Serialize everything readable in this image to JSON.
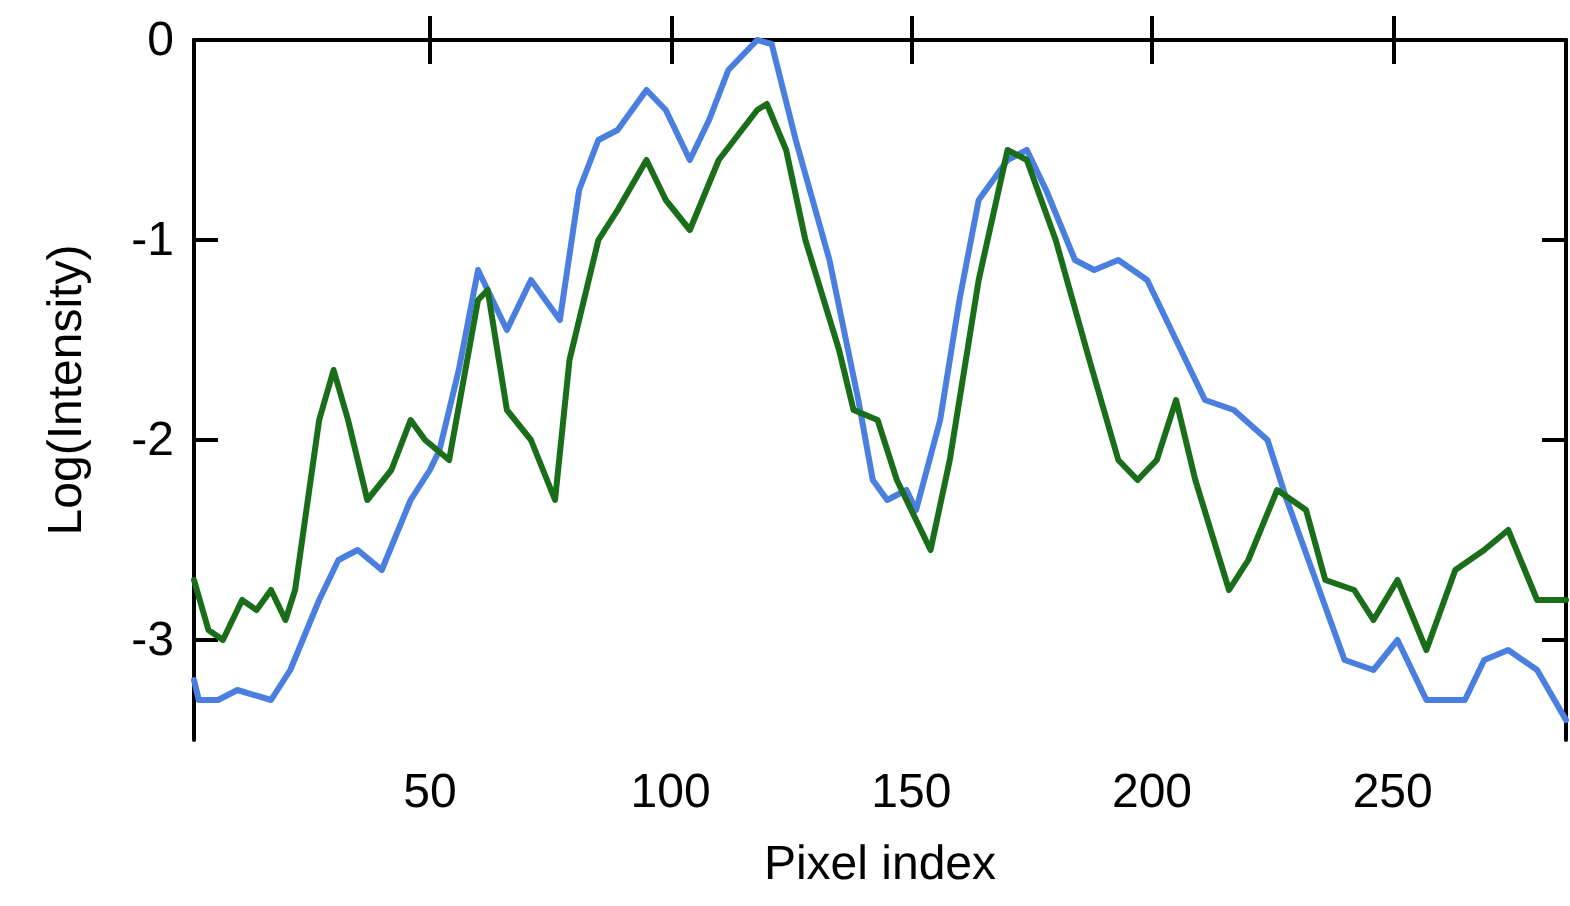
{
  "chart_data": {
    "type": "line",
    "xlabel": "Pixel index",
    "ylabel": "Log(Intensity)",
    "xlim": [
      1,
      286
    ],
    "ylim": [
      -3.5,
      0
    ],
    "xticks": [
      50,
      100,
      150,
      200,
      250
    ],
    "yticks": [
      0,
      -1,
      -2,
      -3
    ],
    "grid": false,
    "marker": "none",
    "line_style": "solid",
    "series": [
      {
        "color": "#4a7fe0",
        "x": [
          1,
          2,
          6,
          10,
          17,
          21,
          27,
          31,
          35,
          40,
          46,
          50,
          52,
          56,
          60,
          62,
          66,
          71,
          77,
          81,
          85,
          89,
          95,
          99,
          104,
          108,
          112,
          118,
          121,
          126,
          133,
          139,
          142,
          145,
          149,
          151,
          156,
          160,
          164,
          170,
          174,
          178,
          184,
          188,
          193,
          199,
          205,
          211,
          217,
          224,
          228,
          234,
          240,
          246,
          251,
          257,
          265,
          269,
          274,
          280,
          286
        ],
        "values": [
          -3.2,
          -3.3,
          -3.3,
          -3.25,
          -3.3,
          -3.15,
          -2.8,
          -2.6,
          -2.55,
          -2.65,
          -2.3,
          -2.15,
          -2.05,
          -1.65,
          -1.15,
          -1.25,
          -1.45,
          -1.2,
          -1.4,
          -0.75,
          -0.5,
          -0.45,
          -0.25,
          -0.35,
          -0.6,
          -0.4,
          -0.15,
          0,
          -0.02,
          -0.5,
          -1.1,
          -1.8,
          -2.2,
          -2.3,
          -2.25,
          -2.35,
          -1.9,
          -1.3,
          -0.8,
          -0.6,
          -0.55,
          -0.75,
          -1.1,
          -1.15,
          -1.1,
          -1.2,
          -1.5,
          -1.8,
          -1.85,
          -2.0,
          -2.3,
          -2.7,
          -3.1,
          -3.15,
          -3.0,
          -3.3,
          -3.3,
          -3.1,
          -3.05,
          -3.15,
          -3.4
        ]
      },
      {
        "color": "#1a6e1a",
        "x": [
          1,
          4,
          7,
          11,
          14,
          17,
          20,
          22,
          27,
          30,
          33,
          37,
          42,
          46,
          49,
          54,
          60,
          62,
          66,
          71,
          76,
          79,
          85,
          89,
          95,
          99,
          104,
          110,
          118,
          120,
          124,
          128,
          135,
          138,
          143,
          147,
          154,
          158,
          164,
          170,
          174,
          180,
          187,
          193,
          197,
          201,
          205,
          209,
          216,
          220,
          226,
          232,
          236,
          242,
          246,
          251,
          257,
          263,
          269,
          274,
          280,
          286
        ],
        "values": [
          -2.7,
          -2.95,
          -3.0,
          -2.8,
          -2.85,
          -2.75,
          -2.9,
          -2.75,
          -1.9,
          -1.65,
          -1.9,
          -2.3,
          -2.15,
          -1.9,
          -2.0,
          -2.1,
          -1.3,
          -1.25,
          -1.85,
          -2.0,
          -2.3,
          -1.6,
          -1.0,
          -0.85,
          -0.6,
          -0.8,
          -0.95,
          -0.6,
          -0.35,
          -0.32,
          -0.55,
          -1.0,
          -1.55,
          -1.85,
          -1.9,
          -2.2,
          -2.55,
          -2.1,
          -1.2,
          -0.55,
          -0.6,
          -1.0,
          -1.6,
          -2.1,
          -2.2,
          -2.1,
          -1.8,
          -2.2,
          -2.75,
          -2.6,
          -2.25,
          -2.35,
          -2.7,
          -2.75,
          -2.9,
          -2.7,
          -3.05,
          -2.65,
          -2.55,
          -2.45,
          -2.8,
          -2.8
        ]
      }
    ]
  }
}
